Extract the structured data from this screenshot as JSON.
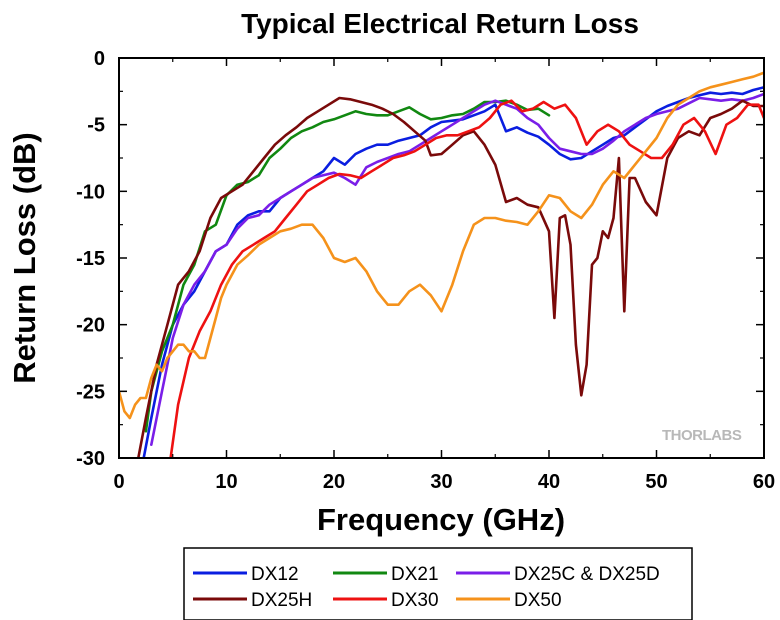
{
  "chart_data": {
    "type": "line",
    "title": "Typical Electrical Return Loss",
    "xlabel": "Frequency (GHz)",
    "ylabel": "Return Loss (dB)",
    "xlim": [
      0,
      60
    ],
    "ylim": [
      -30,
      0
    ],
    "xticks": [
      0,
      10,
      20,
      30,
      40,
      50,
      60
    ],
    "yticks": [
      0,
      -5,
      -10,
      -15,
      -20,
      -25,
      -30
    ],
    "grid": false,
    "legend_position": "bottom",
    "watermark": "THORLABS",
    "series": [
      {
        "name": "DX12",
        "color": "#0a1ee0",
        "x": [
          2.3,
          3,
          4,
          5,
          6,
          7,
          8,
          9,
          10,
          11,
          12,
          13,
          14,
          15,
          16,
          17,
          18,
          19,
          20,
          21,
          22,
          23,
          24,
          25,
          26,
          27,
          28,
          29,
          30,
          31,
          32,
          33,
          34,
          35,
          36,
          37,
          38,
          39,
          40,
          41,
          42,
          43,
          44,
          45,
          46,
          47,
          48,
          49,
          50,
          51,
          52,
          53,
          54,
          55,
          56,
          57,
          58,
          59,
          60
        ],
        "y": [
          -30,
          -27,
          -23,
          -20,
          -18.5,
          -17.5,
          -16,
          -14.5,
          -14,
          -12.5,
          -11.8,
          -11.5,
          -11.5,
          -10.5,
          -10,
          -9.5,
          -9,
          -8.5,
          -7.5,
          -8,
          -7.2,
          -6.8,
          -6.5,
          -6.5,
          -6.2,
          -6,
          -5.8,
          -5.2,
          -4.8,
          -4.7,
          -4.6,
          -4.3,
          -4,
          -3.5,
          -5.5,
          -5.2,
          -5.6,
          -5.9,
          -6.5,
          -7.2,
          -7.6,
          -7.5,
          -7,
          -6.5,
          -6,
          -5.8,
          -5.2,
          -4.6,
          -4,
          -3.6,
          -3.3,
          -3,
          -2.8,
          -2.6,
          -2.7,
          -2.6,
          -2.7,
          -2.4,
          -2.2
        ]
      },
      {
        "name": "DX21",
        "color": "#118811",
        "x": [
          2.5,
          3,
          4,
          5,
          6,
          7,
          8,
          9,
          10,
          11,
          12,
          13,
          14,
          15,
          16,
          17,
          18,
          19,
          20,
          21,
          22,
          23,
          24,
          25,
          26,
          27,
          28,
          29,
          30,
          31,
          32,
          33,
          34,
          35,
          36,
          37,
          38,
          39,
          40
        ],
        "y": [
          -28,
          -25,
          -22,
          -20,
          -17,
          -15.5,
          -13,
          -12.5,
          -10.3,
          -9.5,
          -9.3,
          -8.8,
          -7.5,
          -6.8,
          -6,
          -5.5,
          -5.2,
          -4.8,
          -4.6,
          -4.3,
          -4,
          -4.2,
          -4.3,
          -4.3,
          -4,
          -3.7,
          -4.2,
          -4.6,
          -4.5,
          -4.3,
          -4.2,
          -3.8,
          -3.3,
          -3.3,
          -3.2,
          -3.5,
          -3.9,
          -3.8,
          -4.3
        ]
      },
      {
        "name": "DX25C & DX25D",
        "color": "#7a1ee8",
        "x": [
          3,
          4,
          5,
          6,
          7,
          8,
          9,
          10,
          11,
          12,
          13,
          14,
          15,
          16,
          17,
          18,
          19,
          20,
          21,
          22,
          23,
          24,
          25,
          26,
          27,
          28,
          29,
          30,
          31,
          32,
          33,
          34,
          35,
          36,
          37,
          38,
          39,
          40,
          41,
          42,
          43,
          44,
          45,
          46,
          47,
          48,
          49,
          50,
          51,
          52,
          53,
          54,
          55,
          56,
          57,
          58,
          59,
          60
        ],
        "y": [
          -29,
          -25,
          -21,
          -18.5,
          -17,
          -16,
          -14.5,
          -14,
          -12.8,
          -12,
          -11.8,
          -11,
          -10.5,
          -10,
          -9.5,
          -9,
          -8.8,
          -8.6,
          -9,
          -9.5,
          -8.2,
          -7.8,
          -7.5,
          -7.2,
          -7,
          -6.5,
          -6,
          -5.5,
          -5,
          -4.5,
          -4,
          -3.5,
          -3.2,
          -3.5,
          -3.8,
          -4.5,
          -5,
          -6,
          -6.8,
          -7,
          -7.2,
          -7.2,
          -6.8,
          -6.2,
          -5.5,
          -5,
          -4.5,
          -4.2,
          -4,
          -3.8,
          -3.4,
          -3,
          -3.1,
          -3.2,
          -3.1,
          -3.2,
          -3,
          -2.7
        ]
      },
      {
        "name": "DX25H",
        "color": "#7a0a0a",
        "x": [
          1.8,
          2.5,
          3.5,
          4.5,
          5.5,
          6.5,
          7.5,
          8.5,
          9.5,
          10.5,
          11.5,
          12.5,
          13.5,
          14.5,
          15.5,
          16.5,
          17.5,
          18.5,
          19.5,
          20.5,
          21.5,
          22.5,
          23.5,
          24.5,
          25.5,
          26.5,
          27.5,
          28.5,
          29,
          30,
          31,
          32,
          33,
          34,
          35,
          36,
          37,
          38,
          39,
          40,
          40.5,
          41,
          41.5,
          42,
          42.5,
          43,
          43.5,
          44,
          44.5,
          45,
          45.5,
          46,
          46.5,
          47,
          47.5,
          48,
          49,
          50,
          51,
          52,
          53,
          54,
          55,
          56,
          57,
          58,
          59,
          60
        ],
        "y": [
          -30,
          -27,
          -23,
          -20,
          -17,
          -16,
          -14.5,
          -12,
          -10.5,
          -10,
          -9.5,
          -8.5,
          -7.5,
          -6.5,
          -5.8,
          -5.2,
          -4.5,
          -4,
          -3.5,
          -3,
          -3.1,
          -3.3,
          -3.5,
          -3.8,
          -4.2,
          -4.8,
          -5.5,
          -6.2,
          -7.3,
          -7.2,
          -6.5,
          -5.8,
          -5.5,
          -6.5,
          -8,
          -10.8,
          -10.5,
          -11,
          -11.2,
          -13,
          -19.5,
          -12,
          -11.8,
          -14,
          -21.5,
          -25.3,
          -23,
          -15.5,
          -15,
          -13,
          -13.5,
          -12,
          -7.5,
          -19,
          -9,
          -9,
          -10.8,
          -11.8,
          -7.5,
          -6,
          -5.5,
          -5.8,
          -4.5,
          -4.2,
          -3.8,
          -3.2,
          -3.6,
          -3.6
        ]
      },
      {
        "name": "DX30",
        "color": "#ee1111",
        "x": [
          4.8,
          5.5,
          6.5,
          7.5,
          8.5,
          9.5,
          10.5,
          11.5,
          12.5,
          13.5,
          14.5,
          15.5,
          16.5,
          17.5,
          18.5,
          19.5,
          20.5,
          21.5,
          22.5,
          23.5,
          24.5,
          25.5,
          26.5,
          27.5,
          28.5,
          29.5,
          30.5,
          31.5,
          32.5,
          33.5,
          34.5,
          35.5,
          36.5,
          37.5,
          38.5,
          39.5,
          40.5,
          41.5,
          42.5,
          43.5,
          44.5,
          45.5,
          46.5,
          47.5,
          48.5,
          49.5,
          50.5,
          51.5,
          52.5,
          53.5,
          54.5,
          55.5,
          56.5,
          57.5,
          58.5,
          59.5,
          60
        ],
        "y": [
          -30,
          -26,
          -22.5,
          -20.5,
          -19,
          -17,
          -15.5,
          -14.5,
          -14,
          -13.5,
          -13,
          -12,
          -11,
          -10,
          -9.5,
          -9,
          -8.7,
          -8.8,
          -9,
          -8.5,
          -8,
          -7.5,
          -7.3,
          -7,
          -6.5,
          -6,
          -5.8,
          -5.8,
          -5.5,
          -5.2,
          -4.5,
          -3.5,
          -3.2,
          -4,
          -3.8,
          -3.3,
          -3.8,
          -3.5,
          -4.5,
          -6.5,
          -5.5,
          -5,
          -5.5,
          -6.5,
          -7,
          -7.5,
          -7.5,
          -6.5,
          -5,
          -4.5,
          -5.5,
          -7.2,
          -5,
          -4.5,
          -3.5,
          -3.5,
          -4.5
        ]
      },
      {
        "name": "DX50",
        "color": "#f5921b",
        "x": [
          0,
          0.5,
          1,
          1.5,
          2,
          2.5,
          3,
          3.5,
          4,
          4.5,
          5,
          5.5,
          6,
          6.5,
          7,
          7.5,
          8,
          8.5,
          9,
          9.5,
          10,
          11,
          12,
          13,
          14,
          15,
          16,
          17,
          18,
          19,
          20,
          21,
          22,
          23,
          24,
          25,
          26,
          27,
          28,
          29,
          30,
          31,
          32,
          33,
          34,
          35,
          36,
          37,
          38,
          39,
          40,
          41,
          42,
          43,
          44,
          45,
          46,
          47,
          48,
          49,
          50,
          51,
          52,
          53,
          54,
          55,
          56,
          57,
          58,
          59,
          60
        ],
        "y": [
          -25,
          -26.5,
          -27,
          -26,
          -25.5,
          -25.5,
          -24,
          -23,
          -23.5,
          -22.5,
          -22,
          -21.5,
          -21.5,
          -22,
          -22,
          -22.5,
          -22.5,
          -21,
          -19.5,
          -18,
          -17,
          -15.5,
          -14.8,
          -14,
          -13.5,
          -13,
          -12.8,
          -12.5,
          -12.5,
          -13.5,
          -15,
          -15.3,
          -15,
          -16,
          -17.5,
          -18.5,
          -18.5,
          -17.5,
          -17,
          -17.8,
          -19,
          -17,
          -14.5,
          -12.5,
          -12,
          -12,
          -12.2,
          -12.3,
          -12.5,
          -11.5,
          -10.3,
          -10.5,
          -11.5,
          -12,
          -11,
          -9.5,
          -8.5,
          -9,
          -8,
          -7,
          -6,
          -4.5,
          -3.5,
          -3,
          -2.5,
          -2.2,
          -2,
          -1.8,
          -1.6,
          -1.4,
          -1.1
        ]
      }
    ]
  }
}
